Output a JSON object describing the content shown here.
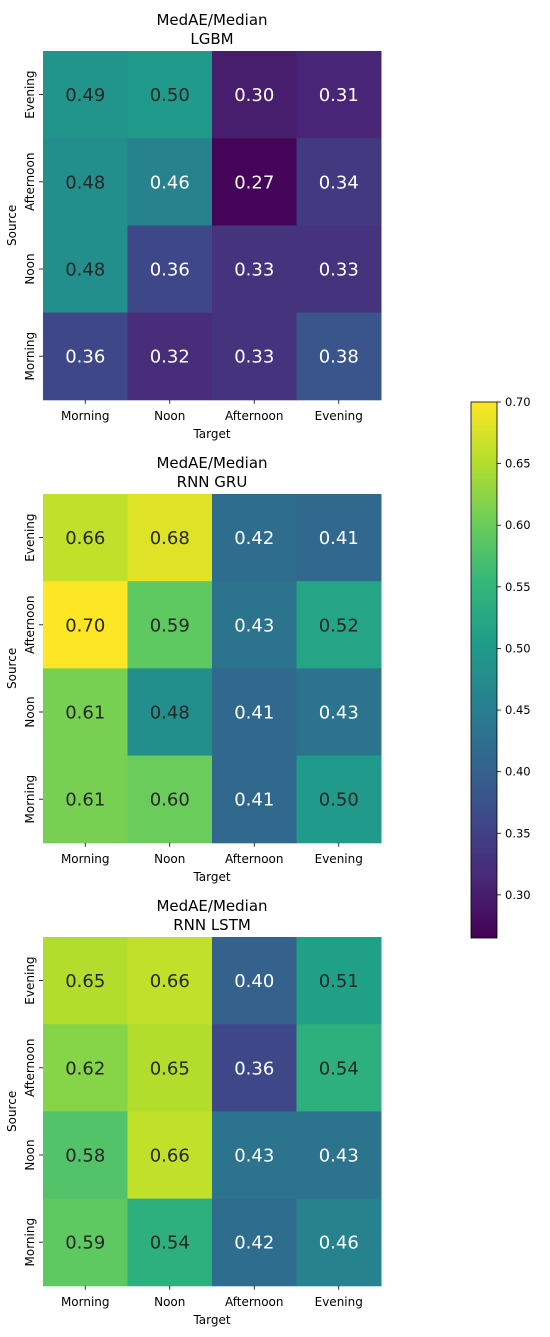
{
  "chart_data": [
    {
      "type": "heatmap",
      "title_line1": "MedAE/Median",
      "title_line2": "LGBM",
      "xlabel": "Target",
      "ylabel": "Source",
      "x_categories": [
        "Morning",
        "Noon",
        "Afternoon",
        "Evening"
      ],
      "y_categories": [
        "Evening",
        "Afternoon",
        "Noon",
        "Morning"
      ],
      "values": [
        [
          0.49,
          0.5,
          0.3,
          0.31
        ],
        [
          0.48,
          0.46,
          0.27,
          0.34
        ],
        [
          0.48,
          0.36,
          0.33,
          0.33
        ],
        [
          0.36,
          0.32,
          0.33,
          0.38
        ]
      ]
    },
    {
      "type": "heatmap",
      "title_line1": "MedAE/Median",
      "title_line2": "RNN GRU",
      "xlabel": "Target",
      "ylabel": "Source",
      "x_categories": [
        "Morning",
        "Noon",
        "Afternoon",
        "Evening"
      ],
      "y_categories": [
        "Evening",
        "Afternoon",
        "Noon",
        "Morning"
      ],
      "values": [
        [
          0.66,
          0.68,
          0.42,
          0.41
        ],
        [
          0.7,
          0.59,
          0.43,
          0.52
        ],
        [
          0.61,
          0.48,
          0.41,
          0.43
        ],
        [
          0.61,
          0.6,
          0.41,
          0.5
        ]
      ]
    },
    {
      "type": "heatmap",
      "title_line1": "MedAE/Median",
      "title_line2": "RNN LSTM",
      "xlabel": "Target",
      "ylabel": "Source",
      "x_categories": [
        "Morning",
        "Noon",
        "Afternoon",
        "Evening"
      ],
      "y_categories": [
        "Evening",
        "Afternoon",
        "Noon",
        "Morning"
      ],
      "values": [
        [
          0.65,
          0.66,
          0.4,
          0.51
        ],
        [
          0.62,
          0.65,
          0.36,
          0.54
        ],
        [
          0.58,
          0.66,
          0.43,
          0.43
        ],
        [
          0.59,
          0.54,
          0.42,
          0.46
        ]
      ]
    }
  ],
  "colorbar": {
    "colormap": "viridis",
    "vmin": 0.265,
    "vmax": 0.7,
    "ticks": [
      0.3,
      0.35,
      0.4,
      0.45,
      0.5,
      0.55,
      0.6,
      0.65,
      0.7
    ],
    "tick_labels": [
      "0.30",
      "0.35",
      "0.40",
      "0.45",
      "0.50",
      "0.55",
      "0.60",
      "0.65",
      "0.70"
    ]
  },
  "colors": {
    "viridis_stops": [
      "#440154",
      "#482878",
      "#3e4989",
      "#31688e",
      "#26828e",
      "#1f9e89",
      "#35b779",
      "#6ece58",
      "#b5de2b",
      "#fde725"
    ],
    "dark_text": "#262626",
    "light_text": "#ffffff"
  }
}
